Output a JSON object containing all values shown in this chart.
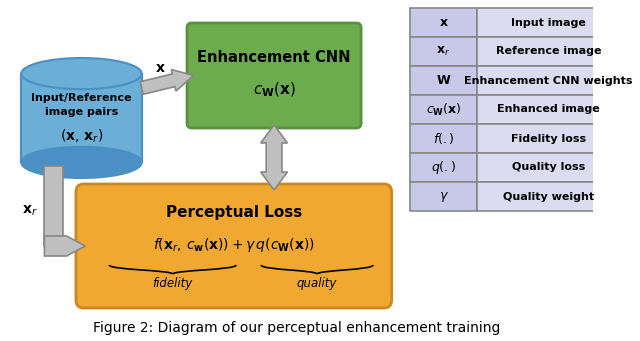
{
  "fig_width": 6.4,
  "fig_height": 3.41,
  "dpi": 100,
  "bg_color": "#ffffff",
  "cylinder_color": "#6baed6",
  "cylinder_dark": "#4a90c4",
  "cnn_box_color": "#6dab4f",
  "cnn_box_edge": "#5a9040",
  "loss_box_color": "#f0a830",
  "loss_box_edge": "#cc8820",
  "table_header_color": "#c8c8e8",
  "table_row_color": "#dcdcf0",
  "table_border_color": "#888888",
  "arrow_color": "#c0c0c0",
  "arrow_edge": "#888888",
  "caption": "Figure 2: Diagram of our perceptual enhancement training",
  "caption_fontsize": 10,
  "table_entries": [
    [
      "$\\mathbf{x}$",
      "Input image"
    ],
    [
      "$\\mathbf{x}_{r}$",
      "Reference image"
    ],
    [
      "$\\mathbf{W}$",
      "Enhancement CNN weights"
    ],
    [
      "$c_{\\mathbf{W}}(\\mathbf{x})$",
      "Enhanced image"
    ],
    [
      "$f(.)$",
      "Fidelity loss"
    ],
    [
      "$q(.)$",
      "Quality loss"
    ],
    [
      "$\\gamma$",
      "Quality weight"
    ]
  ]
}
